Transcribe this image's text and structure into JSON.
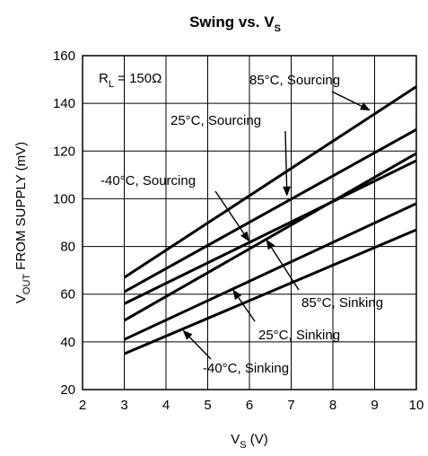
{
  "chart_data": {
    "type": "line",
    "title": {
      "main": "Swing vs. V",
      "sub": "S"
    },
    "xlabel": {
      "main": "V",
      "sub": "S",
      "suffix": " (V)"
    },
    "ylabel": {
      "main": "V",
      "sub": "OUT",
      "suffix": " FROM SUPPLY (mV)"
    },
    "xlim": [
      2,
      10
    ],
    "ylim": [
      20,
      160
    ],
    "xticks": [
      "2",
      "3",
      "4",
      "5",
      "6",
      "7",
      "8",
      "9",
      "10"
    ],
    "yticks": [
      "20",
      "40",
      "60",
      "80",
      "100",
      "120",
      "140",
      "160"
    ],
    "grid": true,
    "legend": "none",
    "load_note": {
      "main": "R",
      "sub": "L",
      "suffix": " = 150Ω"
    },
    "series": [
      {
        "name": "85°C, Sourcing",
        "x": [
          3,
          10
        ],
        "y": [
          67,
          147
        ]
      },
      {
        "name": "25°C, Sourcing",
        "x": [
          3,
          10
        ],
        "y": [
          61,
          129
        ]
      },
      {
        "name": "-40°C, Sourcing",
        "x": [
          3,
          10
        ],
        "y": [
          56,
          116
        ]
      },
      {
        "name": "85°C, Sinking",
        "x": [
          3,
          10
        ],
        "y": [
          49,
          119
        ]
      },
      {
        "name": "25°C, Sinking",
        "x": [
          3,
          10
        ],
        "y": [
          41,
          98
        ]
      },
      {
        "name": "-40°C, Sinking",
        "x": [
          3,
          10
        ],
        "y": [
          35,
          87
        ]
      }
    ],
    "annotations": [
      {
        "text": "85°C, Sourcing",
        "target": [
          8.9,
          137
        ],
        "series": "85°C, Sourcing"
      },
      {
        "text": "25°C, Sourcing",
        "target": [
          6.9,
          101
        ],
        "series": "25°C, Sourcing"
      },
      {
        "text": "-40°C, Sourcing",
        "target": [
          6.0,
          82
        ],
        "series": "-40°C, Sourcing"
      },
      {
        "text": "85°C, Sinking",
        "target": [
          6.4,
          83
        ],
        "series": "85°C, Sinking"
      },
      {
        "text": "25°C, Sinking",
        "target": [
          5.6,
          62
        ],
        "series": "25°C, Sinking"
      },
      {
        "text": "-40°C, Sinking",
        "target": [
          4.4,
          45
        ],
        "series": "-40°C, Sinking"
      }
    ]
  }
}
